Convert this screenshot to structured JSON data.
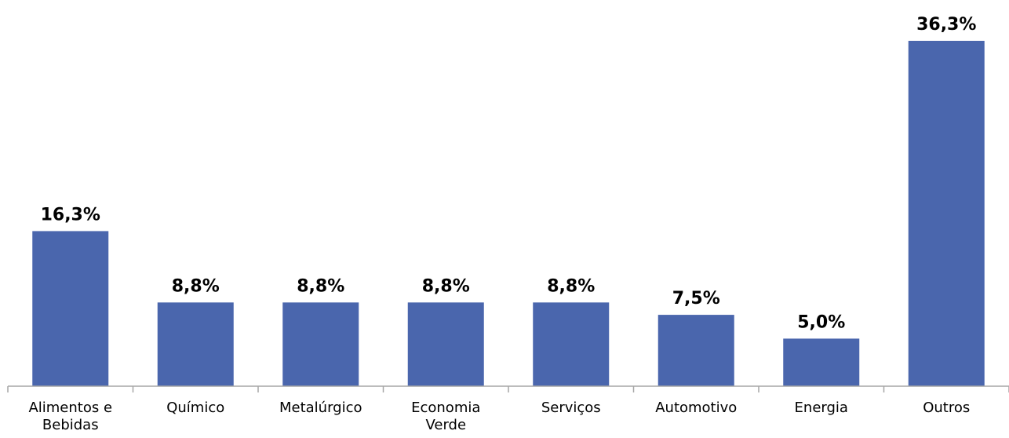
{
  "chart_data": {
    "type": "bar",
    "categories": [
      "Alimentos e Bebidas",
      "Químico",
      "Metalúrgico",
      "Economia Verde",
      "Serviços",
      "Automotivo",
      "Energia",
      "Outros"
    ],
    "category_lines": [
      [
        "Alimentos e",
        "Bebidas"
      ],
      [
        "Químico"
      ],
      [
        "Metalúrgico"
      ],
      [
        "Economia",
        "Verde"
      ],
      [
        "Serviços"
      ],
      [
        "Automotivo"
      ],
      [
        "Energia"
      ],
      [
        "Outros"
      ]
    ],
    "values": [
      16.3,
      8.8,
      8.8,
      8.8,
      8.8,
      7.5,
      5.0,
      36.3
    ],
    "value_labels": [
      "16,3%",
      "8,8%",
      "8,8%",
      "8,8%",
      "8,8%",
      "7,5%",
      "5,0%",
      "36,3%"
    ],
    "title": "",
    "xlabel": "",
    "ylabel": "",
    "ylim": [
      0,
      36.3
    ],
    "grid": false,
    "legend": "none",
    "bar_color": "#4a66ad"
  }
}
